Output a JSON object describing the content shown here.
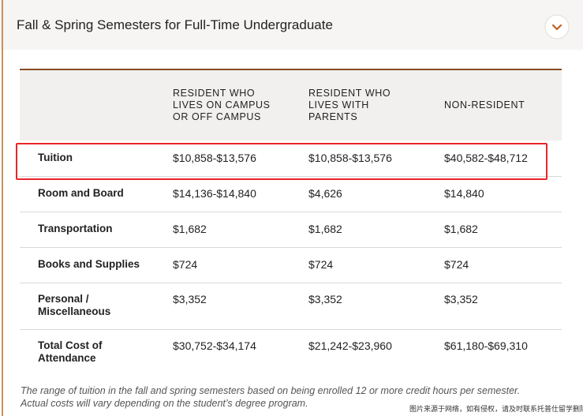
{
  "header": {
    "title": "Fall & Spring Semesters for Full-Time Undergraduate"
  },
  "table": {
    "columns": [
      [
        "RESIDENT WHO",
        "LIVES ON CAMPUS",
        "OR OFF CAMPUS"
      ],
      [
        "RESIDENT WHO",
        "LIVES WITH",
        "PARENTS"
      ],
      [
        "NON-RESIDENT"
      ]
    ],
    "rows": [
      {
        "label": "Tuition",
        "values": [
          "$10,858-$13,576",
          "$10,858-$13,576",
          "$40,582-$48,712"
        ]
      },
      {
        "label": "Room and Board",
        "values": [
          "$14,136-$14,840",
          "$4,626",
          "$14,840"
        ]
      },
      {
        "label": "Transportation",
        "values": [
          "$1,682",
          "$1,682",
          "$1,682"
        ]
      },
      {
        "label": "Books and Supplies",
        "values": [
          "$724",
          "$724",
          "$724"
        ]
      },
      {
        "label": "Personal / Miscellaneous",
        "values": [
          "$3,352",
          "$3,352",
          "$3,352"
        ]
      },
      {
        "label": "Total Cost of Attendance",
        "values": [
          "$30,752-$34,174",
          "$21,242-$23,960",
          "$61,180-$69,310"
        ]
      }
    ]
  },
  "footnote": [
    "The range of tuition in the fall and spring semesters based on being enrolled 12 or more credit hours per semester.",
    "Actual costs will vary depending on the student’s degree program."
  ],
  "watermark": "图片来源于网络，如有侵权，请及时联系托普仕留学删除"
}
